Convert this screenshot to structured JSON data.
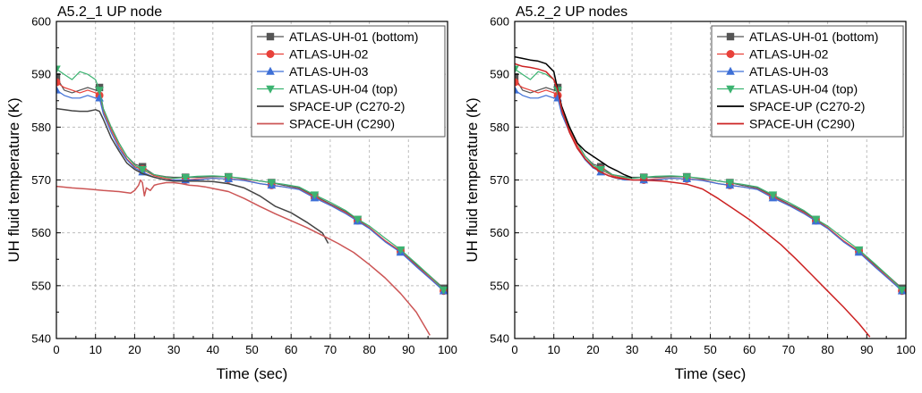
{
  "chart_data": [
    {
      "type": "line",
      "title": "A5.2_1 UP node",
      "xlabel": "Time (sec)",
      "ylabel": "UH fluid temperature (K)",
      "xlim": [
        0,
        100
      ],
      "ylim": [
        540,
        600
      ],
      "xticks": [
        "0",
        "10",
        "20",
        "30",
        "40",
        "50",
        "60",
        "70",
        "80",
        "90",
        "100"
      ],
      "yticks": [
        "540",
        "550",
        "560",
        "570",
        "580",
        "590",
        "600"
      ],
      "grid": true,
      "legend_position": "top-right",
      "series": [
        {
          "name": "ATLAS-UH-01 (bottom)",
          "color": "#555555",
          "marker": "square",
          "x": [
            0,
            2,
            4,
            6,
            8,
            10,
            11,
            12,
            14,
            16,
            18,
            20,
            22,
            25,
            28,
            30,
            33,
            36,
            40,
            44,
            48,
            52,
            55,
            58,
            62,
            66,
            70,
            74,
            77,
            80,
            84,
            88,
            92,
            96,
            99
          ],
          "y": [
            589.5,
            587,
            586.5,
            587,
            587.5,
            587,
            587.5,
            583.5,
            580,
            577,
            574.5,
            573,
            572.5,
            571,
            570.6,
            570.5,
            570.5,
            570.5,
            570.6,
            570.6,
            570.2,
            569.8,
            569.5,
            569,
            568.5,
            567,
            565.5,
            564,
            562.5,
            561,
            558.5,
            556.5,
            554,
            551.5,
            549.5
          ]
        },
        {
          "name": "ATLAS-UH-02",
          "color": "#e8413a",
          "marker": "circle",
          "x": [
            0,
            2,
            4,
            6,
            8,
            10,
            11,
            12,
            14,
            16,
            18,
            20,
            22,
            25,
            28,
            30,
            33,
            36,
            40,
            44,
            48,
            52,
            55,
            58,
            62,
            66,
            70,
            74,
            77,
            80,
            84,
            88,
            92,
            96,
            99
          ],
          "y": [
            588.5,
            587.5,
            587,
            586.5,
            587,
            586.5,
            586,
            583,
            579.5,
            576.5,
            574,
            572.5,
            572,
            570.8,
            570.3,
            570,
            570,
            570.2,
            570.3,
            570.2,
            570,
            569.3,
            569,
            568.7,
            568.3,
            566.8,
            565.3,
            563.8,
            562.3,
            561,
            558.5,
            556.5,
            553.8,
            551.2,
            549
          ]
        },
        {
          "name": "ATLAS-UH-03",
          "color": "#3d6fd6",
          "marker": "triangle-up",
          "x": [
            0,
            2,
            4,
            6,
            8,
            10,
            11,
            12,
            14,
            16,
            18,
            20,
            22,
            25,
            28,
            30,
            33,
            36,
            40,
            44,
            48,
            52,
            55,
            58,
            62,
            66,
            70,
            74,
            77,
            80,
            84,
            88,
            92,
            96,
            99
          ],
          "y": [
            587,
            586,
            585.5,
            585.5,
            586,
            585.5,
            585.5,
            582.5,
            579,
            576,
            573.8,
            572.3,
            571.5,
            570.5,
            570,
            570,
            570,
            570,
            570.3,
            570.2,
            569.9,
            569.3,
            569,
            568.7,
            568.2,
            566.6,
            565.2,
            563.6,
            562.2,
            560.8,
            558.3,
            556.3,
            553.6,
            551,
            549
          ]
        },
        {
          "name": "ATLAS-UH-04 (top)",
          "color": "#3cb371",
          "marker": "triangle-down",
          "x": [
            0,
            2,
            4,
            6,
            8,
            10,
            11,
            12,
            14,
            16,
            18,
            20,
            22,
            25,
            28,
            30,
            33,
            36,
            40,
            44,
            48,
            52,
            55,
            58,
            62,
            66,
            70,
            74,
            77,
            80,
            84,
            88,
            92,
            96,
            99
          ],
          "y": [
            591,
            590,
            589,
            590.5,
            590,
            589,
            587,
            583.5,
            580,
            577,
            574.5,
            572.8,
            572,
            571,
            570.5,
            570.3,
            570.5,
            570.7,
            570.8,
            570.6,
            570.3,
            569.8,
            569.5,
            569.2,
            568.7,
            567.2,
            565.8,
            564.2,
            562.6,
            561.3,
            559,
            556.8,
            554.2,
            551.5,
            549.2
          ]
        },
        {
          "name": "SPACE-UP (C270-2)",
          "color": "#444444",
          "marker": "none",
          "x": [
            0,
            2,
            4,
            6,
            8,
            10,
            11,
            12,
            14,
            16,
            18,
            20,
            22,
            25,
            28,
            30,
            33,
            36,
            40,
            44,
            48,
            52,
            56,
            60,
            64,
            68,
            69.5
          ],
          "y": [
            583.5,
            583.3,
            583.1,
            583,
            583,
            583.3,
            583,
            581.5,
            578,
            575.5,
            573.2,
            572,
            571.2,
            570.5,
            570,
            569.8,
            569.8,
            569.8,
            569.7,
            569.3,
            568.5,
            567,
            565,
            563.8,
            562,
            560,
            558
          ]
        },
        {
          "name": "SPACE-UH (C290)",
          "color": "#cc5555",
          "marker": "none",
          "x": [
            0,
            4,
            8,
            12,
            16,
            19,
            20,
            21,
            21.5,
            22,
            22.5,
            23,
            24,
            25,
            26,
            28,
            30,
            32,
            34,
            36,
            38,
            40,
            44,
            48,
            52,
            56,
            60,
            64,
            68,
            72,
            76,
            80,
            84,
            88,
            92,
            95.5
          ],
          "y": [
            568.8,
            568.5,
            568.3,
            568,
            567.8,
            567.5,
            568,
            569,
            570,
            569.5,
            567,
            568.5,
            568,
            569,
            569.2,
            569.5,
            569.5,
            569.3,
            569,
            568.9,
            568.7,
            568.4,
            567.8,
            566.5,
            565,
            563.6,
            562.3,
            561,
            559.5,
            558,
            556.3,
            554,
            551.5,
            548.5,
            545,
            540.6
          ]
        }
      ]
    },
    {
      "type": "line",
      "title": "A5.2_2 UP nodes",
      "xlabel": "Time (sec)",
      "ylabel": "UH fluid temperature (K)",
      "xlim": [
        0,
        100
      ],
      "ylim": [
        540,
        600
      ],
      "xticks": [
        "0",
        "10",
        "20",
        "30",
        "40",
        "50",
        "60",
        "70",
        "80",
        "90",
        "100"
      ],
      "yticks": [
        "540",
        "550",
        "560",
        "570",
        "580",
        "590",
        "600"
      ],
      "grid": true,
      "legend_position": "top-right",
      "series": [
        {
          "name": "ATLAS-UH-01 (bottom)",
          "color": "#555555",
          "marker": "square",
          "x": [
            0,
            2,
            4,
            6,
            8,
            10,
            11,
            12,
            14,
            16,
            18,
            20,
            22,
            25,
            28,
            30,
            33,
            36,
            40,
            44,
            48,
            52,
            55,
            58,
            62,
            66,
            70,
            74,
            77,
            80,
            84,
            88,
            92,
            96,
            99
          ],
          "y": [
            589.5,
            587,
            586.5,
            587,
            587.5,
            587,
            587.5,
            583.5,
            580,
            577,
            574.5,
            573,
            572.5,
            571,
            570.6,
            570.5,
            570.5,
            570.5,
            570.6,
            570.6,
            570.2,
            569.8,
            569.5,
            569,
            568.5,
            567,
            565.5,
            564,
            562.5,
            561,
            558.5,
            556.5,
            554,
            551.5,
            549.5
          ]
        },
        {
          "name": "ATLAS-UH-02",
          "color": "#e8413a",
          "marker": "circle",
          "x": [
            0,
            2,
            4,
            6,
            8,
            10,
            11,
            12,
            14,
            16,
            18,
            20,
            22,
            25,
            28,
            30,
            33,
            36,
            40,
            44,
            48,
            52,
            55,
            58,
            62,
            66,
            70,
            74,
            77,
            80,
            84,
            88,
            92,
            96,
            99
          ],
          "y": [
            588.5,
            587.5,
            587,
            586.5,
            587,
            586.5,
            586,
            583,
            579.5,
            576.5,
            574,
            572.5,
            572,
            570.8,
            570.3,
            570,
            570,
            570.2,
            570.3,
            570.2,
            570,
            569.3,
            569,
            568.7,
            568.3,
            566.8,
            565.3,
            563.8,
            562.3,
            561,
            558.5,
            556.5,
            553.8,
            551.2,
            549
          ]
        },
        {
          "name": "ATLAS-UH-03",
          "color": "#3d6fd6",
          "marker": "triangle-up",
          "x": [
            0,
            2,
            4,
            6,
            8,
            10,
            11,
            12,
            14,
            16,
            18,
            20,
            22,
            25,
            28,
            30,
            33,
            36,
            40,
            44,
            48,
            52,
            55,
            58,
            62,
            66,
            70,
            74,
            77,
            80,
            84,
            88,
            92,
            96,
            99
          ],
          "y": [
            587,
            586,
            585.5,
            585.5,
            586,
            585.5,
            585.5,
            582.5,
            579,
            576,
            573.8,
            572.3,
            571.5,
            570.5,
            570,
            570,
            570,
            570,
            570.3,
            570.2,
            569.9,
            569.3,
            569,
            568.7,
            568.2,
            566.6,
            565.2,
            563.6,
            562.2,
            560.8,
            558.3,
            556.3,
            553.6,
            551,
            549
          ]
        },
        {
          "name": "ATLAS-UH-04 (top)",
          "color": "#3cb371",
          "marker": "triangle-down",
          "x": [
            0,
            2,
            4,
            6,
            8,
            10,
            11,
            12,
            14,
            16,
            18,
            20,
            22,
            25,
            28,
            30,
            33,
            36,
            40,
            44,
            48,
            52,
            55,
            58,
            62,
            66,
            70,
            74,
            77,
            80,
            84,
            88,
            92,
            96,
            99
          ],
          "y": [
            591,
            590,
            589,
            590.5,
            590,
            589,
            587,
            583.5,
            580,
            577,
            574.5,
            572.8,
            572,
            571,
            570.5,
            570.3,
            570.5,
            570.7,
            570.8,
            570.6,
            570.3,
            569.8,
            569.5,
            569.2,
            568.7,
            567.2,
            565.8,
            564.2,
            562.6,
            561.3,
            559,
            556.8,
            554.2,
            551.5,
            549.2
          ]
        },
        {
          "name": "SPACE-UP (C270-2)",
          "color": "#000000",
          "marker": "none",
          "x": [
            0,
            2,
            4,
            6,
            8,
            10,
            11,
            12,
            14,
            16,
            18,
            20,
            22,
            24,
            26,
            28,
            30
          ],
          "y": [
            593.3,
            593,
            592.7,
            592.5,
            592,
            590.5,
            587,
            584,
            580,
            577,
            575.5,
            574.5,
            573.5,
            572.5,
            571.8,
            571,
            570.4
          ]
        },
        {
          "name": "SPACE-UH (C290)",
          "color": "#cc2222",
          "marker": "none",
          "x": [
            0,
            2,
            4,
            6,
            8,
            10,
            11,
            12,
            14,
            16,
            18,
            20,
            22,
            24,
            26,
            28,
            30,
            32,
            35,
            38,
            40,
            44,
            48,
            52,
            56,
            60,
            64,
            68,
            72,
            76,
            80,
            84,
            88,
            90.8
          ],
          "y": [
            592,
            591.5,
            591.3,
            591,
            590.5,
            589,
            587,
            583.5,
            579,
            576,
            574,
            572.5,
            571.5,
            570.8,
            570.4,
            570.2,
            570,
            570,
            569.9,
            569.8,
            569.6,
            569.2,
            568.3,
            566.5,
            564.5,
            562.5,
            560.2,
            557.8,
            555,
            552,
            549,
            546,
            542.8,
            540.3
          ]
        }
      ]
    }
  ]
}
